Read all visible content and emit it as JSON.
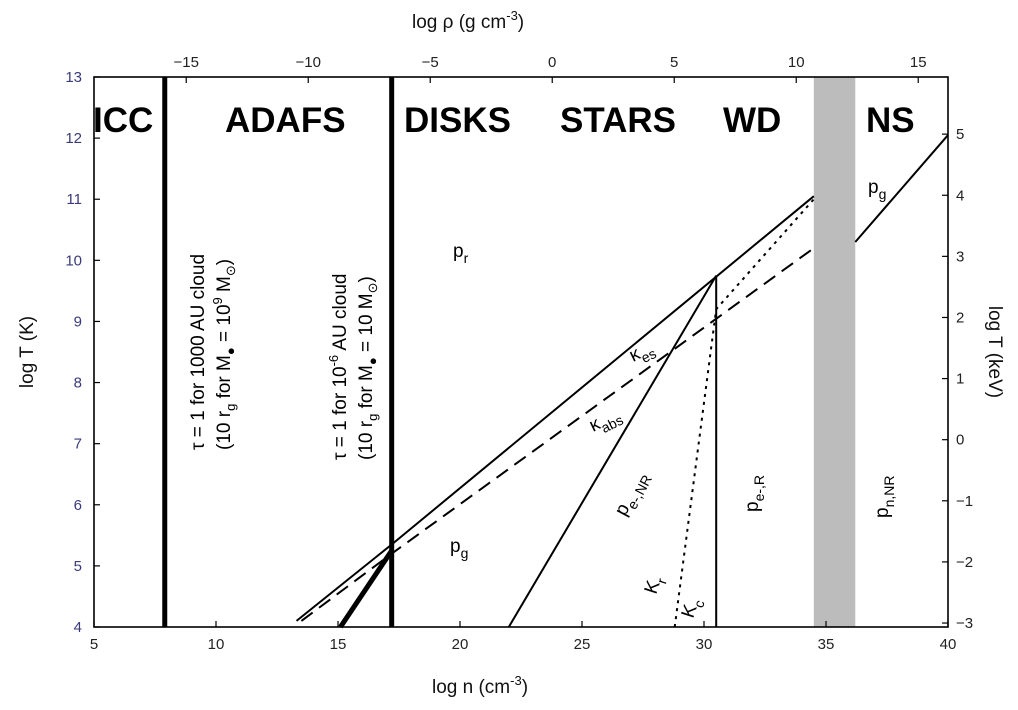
{
  "chart_data": {
    "type": "line",
    "xlabel": "log n  (cm",
    "xlabel_sup": "-3",
    "xlabel_close": ")",
    "ylabel": "log T  (K)",
    "top_label": "log ρ  (g cm",
    "top_label_sup": "-3",
    "top_label_close": ")",
    "right_label": "log T  (keV)",
    "xlim": [
      5,
      40
    ],
    "ylim": [
      4,
      13
    ],
    "x_ticks": [
      "5",
      "10",
      "15",
      "20",
      "25",
      "30",
      "35",
      "40"
    ],
    "y_ticks": [
      "4",
      "5",
      "6",
      "7",
      "8",
      "9",
      "10",
      "11",
      "12",
      "13"
    ],
    "top_ticks": [
      "−15",
      "−10",
      "−5",
      "0",
      "5",
      "10",
      "15"
    ],
    "right_ticks": [
      "−3",
      "−2",
      "−1",
      "0",
      "1",
      "2",
      "3",
      "4",
      "5"
    ],
    "regions": [
      "ICC",
      "ADAFS",
      "DISKS",
      "STARS",
      "WD",
      "NS"
    ],
    "shaded_band_x": [
      34.5,
      36.2
    ],
    "lines": [
      {
        "name": "tau-1000AU",
        "style": "thick",
        "points": [
          [
            7.9,
            4
          ],
          [
            7.9,
            13
          ]
        ]
      },
      {
        "name": "tau-1e-6AU",
        "style": "thick",
        "points": [
          [
            17.2,
            4
          ],
          [
            17.2,
            13
          ]
        ]
      },
      {
        "name": "tau-thick-diag",
        "style": "thick",
        "points": [
          [
            15.1,
            4
          ],
          [
            17.2,
            5.25
          ]
        ]
      },
      {
        "name": "pr-pg-boundary",
        "style": "solid",
        "points": [
          [
            13.3,
            4.1
          ],
          [
            17.2,
            5.35
          ],
          [
            34.5,
            11.05
          ]
        ]
      },
      {
        "name": "kappa-es-abs-dash",
        "style": "dashed",
        "points": [
          [
            13.5,
            4.1
          ],
          [
            17.2,
            5.2
          ],
          [
            34.5,
            10.2
          ]
        ]
      },
      {
        "name": "pe-NR-left",
        "style": "solid",
        "points": [
          [
            22,
            4
          ],
          [
            30.5,
            9.75
          ]
        ]
      },
      {
        "name": "pe-R-vertical",
        "style": "solid",
        "points": [
          [
            30.5,
            4
          ],
          [
            30.5,
            9.75
          ]
        ]
      },
      {
        "name": "kr-kc-dotted",
        "style": "dotted",
        "points": [
          [
            28.8,
            4
          ],
          [
            30.5,
            9.2
          ],
          [
            34.5,
            11
          ]
        ]
      },
      {
        "name": "ns-pg",
        "style": "solid",
        "points": [
          [
            36.2,
            10.3
          ],
          [
            40,
            12.05
          ]
        ]
      }
    ],
    "annotations": {
      "tau1": "τ = 1  for 1000 AU cloud",
      "tau1_sub": "(10 r",
      "tau1_g": "g",
      "tau1_mid": " for M",
      "tau1_end": " = 10",
      "tau1_exp": "9",
      "tau1_msun": " M",
      "tau1_close": ")",
      "tau2": "τ = 1  for 10",
      "tau2_exp": "-6",
      "tau2_rest": " AU cloud",
      "tau2_sub": "(10 r",
      "tau2_g": "g",
      "tau2_mid": " for M",
      "tau2_end": " = 10 M",
      "tau2_close": ")",
      "sun_symbol": "⊙",
      "pr": "p",
      "pr_sub": "r",
      "pg_low": "p",
      "pg_low_sub": "g",
      "pg_ns": "p",
      "pg_ns_sub": "g",
      "kes": "κ",
      "kes_sub": "es",
      "kabs": "κ",
      "kabs_sub": "abs",
      "penr": "p",
      "penr_sub": "e-,NR",
      "per": "p",
      "per_sub": "e-,R",
      "pnnr": "p",
      "pnnr_sub": "n,NR",
      "kr": "K",
      "kr_sub": "r",
      "kc": "K",
      "kc_sub": "c"
    }
  }
}
